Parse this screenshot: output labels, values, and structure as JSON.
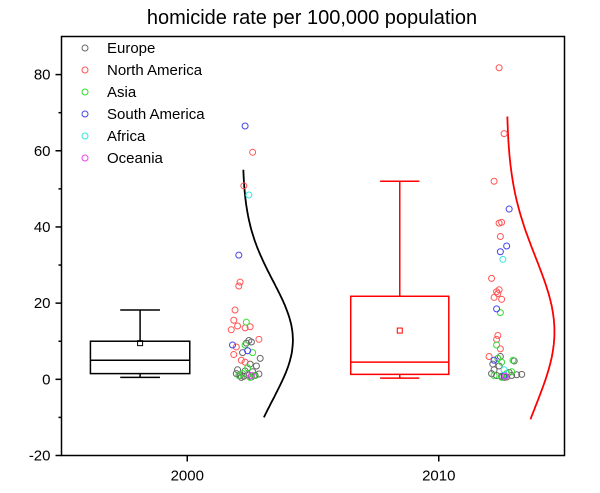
{
  "chart_data": {
    "type": "box",
    "title": "homicide rate per 100,000 population",
    "xlabel": "",
    "ylabel": "",
    "xlim": [
      1995,
      2015
    ],
    "ylim": [
      -20,
      90
    ],
    "x_ticks": [
      {
        "value": 2000,
        "label": "2000"
      },
      {
        "value": 2010,
        "label": "2010"
      }
    ],
    "y_ticks": [
      {
        "value": -20,
        "label": "-20"
      },
      {
        "value": 0,
        "label": "0"
      },
      {
        "value": 20,
        "label": "20"
      },
      {
        "value": 40,
        "label": "40"
      },
      {
        "value": 60,
        "label": "60"
      },
      {
        "value": 80,
        "label": "80"
      }
    ],
    "y_minor_ticks": [
      -10,
      10,
      30,
      50,
      70
    ],
    "legend": {
      "placement": "top-left",
      "entries": [
        {
          "name": "Europe",
          "color": "#666666"
        },
        {
          "name": "North America",
          "color": "#ff5555"
        },
        {
          "name": "Asia",
          "color": "#33dd33"
        },
        {
          "name": "South America",
          "color": "#4444ee"
        },
        {
          "name": "Africa",
          "color": "#33e6e6"
        },
        {
          "name": "Oceania",
          "color": "#ee44ee"
        }
      ]
    },
    "boxes": [
      {
        "year": 2000,
        "x_range": [
          1996.15,
          2000.1
        ],
        "color": "#000000",
        "whisker_low": 0.5,
        "q1": 1.5,
        "median": 5.0,
        "q3": 10.0,
        "whisker_high": 18.2,
        "mean": 9.5
      },
      {
        "year": 2010,
        "x_range": [
          2006.5,
          2010.4
        ],
        "color": "#ff0000",
        "whisker_low": 0.3,
        "q1": 1.3,
        "median": 4.5,
        "q3": 21.8,
        "whisker_high": 52.0,
        "mean": 12.8
      }
    ],
    "distribution_curves": [
      {
        "year": 2000,
        "color": "#000000",
        "base_x": 2002.2,
        "peak_x": 2004.2,
        "mean": 10.3,
        "sd": 15.5,
        "y_range": [
          -10,
          55
        ]
      },
      {
        "year": 2010,
        "color": "#ff0000",
        "base_x": 2012.7,
        "peak_x": 2014.6,
        "mean": 12.5,
        "sd": 19.5,
        "y_range": [
          -10.5,
          69
        ]
      }
    ],
    "series": [
      {
        "name": "Europe",
        "points": [
          [
            2001.95,
            1.5
          ],
          [
            2002.1,
            1.0
          ],
          [
            2002.25,
            0.8
          ],
          [
            2002.4,
            1.2
          ],
          [
            2002.55,
            0.6
          ],
          [
            2002.7,
            1.0
          ],
          [
            2002.85,
            1.4
          ],
          [
            2002.0,
            2.5
          ],
          [
            2002.3,
            2.2
          ],
          [
            2002.6,
            2.0
          ],
          [
            2002.9,
            5.5
          ],
          [
            2002.5,
            4.0
          ],
          [
            2002.35,
            9.5
          ],
          [
            2002.45,
            10.2
          ],
          [
            2002.55,
            9.8
          ],
          [
            2002.2,
            7.0
          ],
          [
            2002.75,
            3.5
          ],
          [
            2002.15,
            0.5
          ],
          [
            2012.1,
            1.5
          ],
          [
            2012.3,
            1.0
          ],
          [
            2012.5,
            0.8
          ],
          [
            2012.7,
            0.6
          ],
          [
            2012.9,
            1.0
          ],
          [
            2013.1,
            1.2
          ],
          [
            2013.3,
            1.3
          ],
          [
            2012.2,
            2.5
          ],
          [
            2012.4,
            3.5
          ],
          [
            2012.15,
            4.0
          ],
          [
            2012.35,
            5.5
          ],
          [
            2012.6,
            0.5
          ],
          [
            2012.8,
            1.8
          ],
          [
            2013.0,
            4.8
          ],
          [
            2012.45,
            6.0
          ]
        ]
      },
      {
        "name": "North America",
        "points": [
          [
            2002.6,
            59.6
          ],
          [
            2002.25,
            50.8
          ],
          [
            2002.1,
            25.5
          ],
          [
            2002.05,
            24.5
          ],
          [
            2001.9,
            18.2
          ],
          [
            2001.85,
            15.5
          ],
          [
            2002.0,
            14.0
          ],
          [
            2002.3,
            13.5
          ],
          [
            2001.75,
            13.0
          ],
          [
            2002.5,
            13.8
          ],
          [
            2002.85,
            10.5
          ],
          [
            2001.95,
            8.5
          ],
          [
            2001.85,
            6.5
          ],
          [
            2002.15,
            5.0
          ],
          [
            2002.3,
            4.5
          ],
          [
            2012.4,
            81.8
          ],
          [
            2012.6,
            64.5
          ],
          [
            2012.2,
            52.0
          ],
          [
            2012.4,
            41.0
          ],
          [
            2012.5,
            41.2
          ],
          [
            2012.45,
            37.5
          ],
          [
            2012.1,
            26.5
          ],
          [
            2012.3,
            23.0
          ],
          [
            2012.4,
            23.5
          ],
          [
            2012.2,
            21.5
          ],
          [
            2012.35,
            22.5
          ],
          [
            2012.5,
            21.0
          ],
          [
            2012.35,
            11.5
          ],
          [
            2012.3,
            10.5
          ],
          [
            2012.45,
            8.0
          ],
          [
            2012.0,
            6.0
          ]
        ]
      },
      {
        "name": "Asia",
        "points": [
          [
            2002.35,
            15.0
          ],
          [
            2002.3,
            9.0
          ],
          [
            2002.6,
            7.0
          ],
          [
            2002.4,
            3.0
          ],
          [
            2002.2,
            1.5
          ],
          [
            2002.5,
            0.5
          ],
          [
            2002.65,
            1.0
          ],
          [
            2002.05,
            1.0
          ],
          [
            2012.45,
            17.5
          ],
          [
            2012.3,
            9.0
          ],
          [
            2012.35,
            5.5
          ],
          [
            2012.5,
            4.5
          ],
          [
            2012.7,
            1.5
          ],
          [
            2012.9,
            2.0
          ],
          [
            2012.5,
            0.5
          ],
          [
            2012.2,
            1.0
          ],
          [
            2012.95,
            5.0
          ]
        ]
      },
      {
        "name": "South America",
        "points": [
          [
            2002.3,
            66.5
          ],
          [
            2002.05,
            32.6
          ],
          [
            2001.8,
            9.0
          ],
          [
            2002.4,
            7.5
          ],
          [
            2012.8,
            44.7
          ],
          [
            2012.7,
            35.0
          ],
          [
            2012.45,
            33.5
          ],
          [
            2012.3,
            18.5
          ],
          [
            2012.2,
            5.0
          ],
          [
            2012.6,
            1.0
          ]
        ]
      },
      {
        "name": "Africa",
        "points": [
          [
            2002.45,
            48.4
          ],
          [
            2012.55,
            31.5
          ],
          [
            2012.6,
            2.5
          ]
        ]
      },
      {
        "name": "Oceania",
        "points": [
          [
            2002.55,
            1.0
          ],
          [
            2012.65,
            0.8
          ]
        ]
      }
    ]
  }
}
